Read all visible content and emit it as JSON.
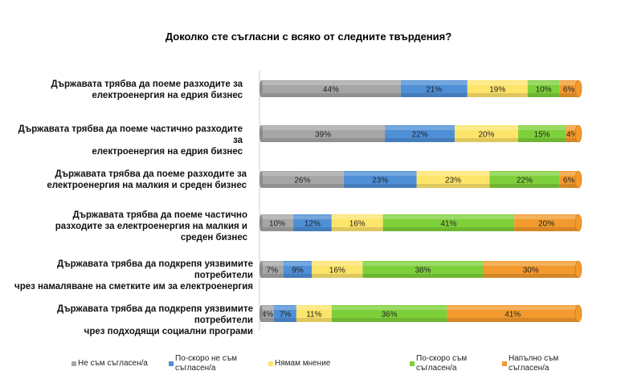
{
  "chart_data": {
    "type": "bar",
    "orientation": "horizontal",
    "stacked": true,
    "title": "Доколко сте съгласни с всяко от следните твърдения?",
    "categories": [
      "Държавата трябва да поеме разходите за електроенергия на едрия бизнес",
      "Държавата трябва да поеме частично разходите за електроенергия на едрия бизнес",
      "Държавата трябва да поеме разходите за електроенергия на малкия и среден бизнес",
      "Държавата трябва да поеме частично разходите за електроенергия на малкия и среден бизнес",
      "Държавата трябва да подкрепя уязвимите потребители чрез намаляване на сметките им за електроенергия",
      "Държавата трябва да подкрепя уязвимите потребители чрез подходящи социални програми"
    ],
    "series": [
      {
        "name": "Не съм съгласен/а",
        "color": "#a6a6a6",
        "values": [
          44,
          39,
          26,
          10,
          7,
          4
        ]
      },
      {
        "name": "По-скоро не съм съгласен/а",
        "color": "#4f8fd6",
        "values": [
          21,
          22,
          23,
          12,
          9,
          7
        ]
      },
      {
        "name": "Нямам мнение",
        "color": "#fde46a",
        "values": [
          19,
          20,
          23,
          16,
          16,
          11
        ]
      },
      {
        "name": "По-скоро съм съгласен/а",
        "color": "#7ed03a",
        "values": [
          10,
          15,
          22,
          41,
          38,
          36
        ]
      },
      {
        "name": "Напълно съм съгласен/а",
        "color": "#f39a2e",
        "values": [
          6,
          4,
          6,
          20,
          30,
          41
        ]
      }
    ],
    "value_suffix": "%",
    "legend_position": "bottom"
  }
}
